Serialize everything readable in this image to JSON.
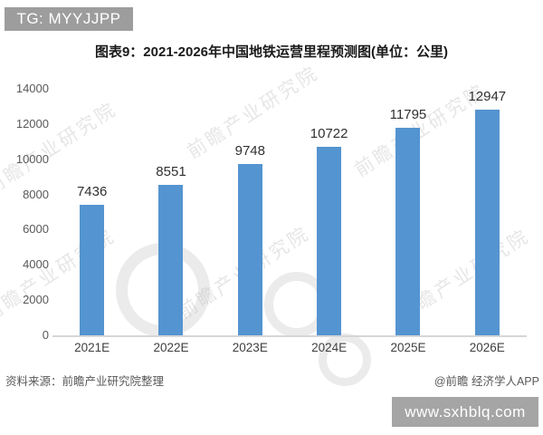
{
  "overlays": {
    "telegram_badge": "TG: MYYJJPP",
    "site_badge": "www.sxhblq.com"
  },
  "chart_data": {
    "type": "bar",
    "title": "图表9：2021-2026年中国地铁运营里程预测图(单位：公里)",
    "categories": [
      "2021E",
      "2022E",
      "2023E",
      "2024E",
      "2025E",
      "2026E"
    ],
    "values": [
      7436,
      8551,
      9748,
      10722,
      11795,
      12947
    ],
    "unit": "公里",
    "ylim": [
      0,
      14000
    ],
    "yticks": [
      0,
      2000,
      4000,
      6000,
      8000,
      10000,
      12000,
      14000
    ],
    "bar_color": "#5494d0",
    "grid": false,
    "legend": false,
    "data_labels": true
  },
  "footer": {
    "source": "资料来源：前瞻产业研究院整理",
    "credit": "@前瞻 经济学人APP"
  },
  "watermark": {
    "text": "前瞻产业研究院"
  }
}
